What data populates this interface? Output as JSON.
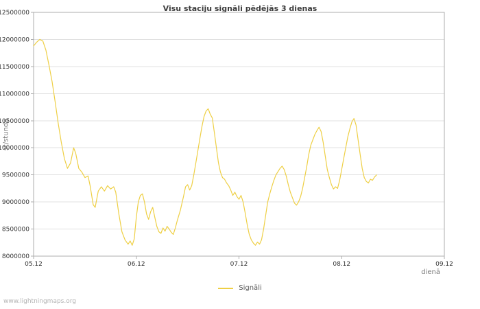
{
  "page": {
    "watermark": "www.lightningmaps.org"
  },
  "chart_data": {
    "type": "line",
    "title": "Visu staciju signāli pēdējās 3 dienas",
    "xlabel": "dienā",
    "ylabel": "st/stundā",
    "legend_position": "bottom-center",
    "grid": "horizontal",
    "x_range": [
      0,
      4
    ],
    "y_range": [
      8000000,
      12500000
    ],
    "colors": {
      "line": "#eecf44",
      "grid": "#e0e0e0",
      "frame": "#adadad"
    },
    "x_ticks": [
      {
        "value": 0,
        "label": "05.12"
      },
      {
        "value": 1,
        "label": "06.12"
      },
      {
        "value": 2,
        "label": "07.12"
      },
      {
        "value": 3,
        "label": "08.12"
      },
      {
        "value": 4,
        "label": "09.12"
      }
    ],
    "y_ticks": [
      {
        "value": 8000000,
        "label": "8000000"
      },
      {
        "value": 8500000,
        "label": "8500000"
      },
      {
        "value": 9000000,
        "label": "9000000"
      },
      {
        "value": 9500000,
        "label": "9500000"
      },
      {
        "value": 10000000,
        "label": "10000000"
      },
      {
        "value": 10500000,
        "label": "10500000"
      },
      {
        "value": 11000000,
        "label": "11000000"
      },
      {
        "value": 11500000,
        "label": "11500000"
      },
      {
        "value": 12000000,
        "label": "12000000"
      },
      {
        "value": 12500000,
        "label": "12500000"
      }
    ],
    "series": [
      {
        "name": "Signāli",
        "color": "#eecf44",
        "points": [
          [
            0,
            11880000
          ],
          [
            0.03,
            11950000
          ],
          [
            0.06,
            12000000
          ],
          [
            0.09,
            11970000
          ],
          [
            0.12,
            11800000
          ],
          [
            0.15,
            11520000
          ],
          [
            0.18,
            11220000
          ],
          [
            0.21,
            10850000
          ],
          [
            0.24,
            10450000
          ],
          [
            0.27,
            10100000
          ],
          [
            0.3,
            9800000
          ],
          [
            0.33,
            9620000
          ],
          [
            0.36,
            9720000
          ],
          [
            0.39,
            10000000
          ],
          [
            0.41,
            9900000
          ],
          [
            0.44,
            9620000
          ],
          [
            0.47,
            9550000
          ],
          [
            0.5,
            9450000
          ],
          [
            0.53,
            9480000
          ],
          [
            0.55,
            9300000
          ],
          [
            0.58,
            8950000
          ],
          [
            0.6,
            8900000
          ],
          [
            0.63,
            9200000
          ],
          [
            0.66,
            9280000
          ],
          [
            0.69,
            9200000
          ],
          [
            0.72,
            9300000
          ],
          [
            0.75,
            9240000
          ],
          [
            0.78,
            9280000
          ],
          [
            0.8,
            9180000
          ],
          [
            0.83,
            8780000
          ],
          [
            0.86,
            8450000
          ],
          [
            0.89,
            8300000
          ],
          [
            0.92,
            8220000
          ],
          [
            0.94,
            8280000
          ],
          [
            0.96,
            8200000
          ],
          [
            0.98,
            8320000
          ],
          [
            1,
            8720000
          ],
          [
            1.02,
            9000000
          ],
          [
            1.04,
            9120000
          ],
          [
            1.06,
            9150000
          ],
          [
            1.08,
            9000000
          ],
          [
            1.1,
            8780000
          ],
          [
            1.12,
            8680000
          ],
          [
            1.14,
            8820000
          ],
          [
            1.16,
            8900000
          ],
          [
            1.18,
            8720000
          ],
          [
            1.2,
            8550000
          ],
          [
            1.22,
            8450000
          ],
          [
            1.24,
            8420000
          ],
          [
            1.26,
            8520000
          ],
          [
            1.28,
            8460000
          ],
          [
            1.3,
            8550000
          ],
          [
            1.32,
            8500000
          ],
          [
            1.34,
            8440000
          ],
          [
            1.36,
            8400000
          ],
          [
            1.38,
            8520000
          ],
          [
            1.4,
            8660000
          ],
          [
            1.43,
            8850000
          ],
          [
            1.46,
            9100000
          ],
          [
            1.48,
            9280000
          ],
          [
            1.5,
            9320000
          ],
          [
            1.52,
            9220000
          ],
          [
            1.54,
            9300000
          ],
          [
            1.56,
            9500000
          ],
          [
            1.58,
            9720000
          ],
          [
            1.6,
            9950000
          ],
          [
            1.62,
            10180000
          ],
          [
            1.64,
            10400000
          ],
          [
            1.66,
            10580000
          ],
          [
            1.68,
            10680000
          ],
          [
            1.7,
            10720000
          ],
          [
            1.72,
            10620000
          ],
          [
            1.74,
            10550000
          ],
          [
            1.76,
            10280000
          ],
          [
            1.78,
            10000000
          ],
          [
            1.8,
            9720000
          ],
          [
            1.82,
            9550000
          ],
          [
            1.84,
            9450000
          ],
          [
            1.86,
            9420000
          ],
          [
            1.88,
            9350000
          ],
          [
            1.9,
            9300000
          ],
          [
            1.92,
            9220000
          ],
          [
            1.94,
            9120000
          ],
          [
            1.96,
            9180000
          ],
          [
            1.98,
            9100000
          ],
          [
            2,
            9050000
          ],
          [
            2.02,
            9120000
          ],
          [
            2.04,
            9000000
          ],
          [
            2.06,
            8800000
          ],
          [
            2.08,
            8580000
          ],
          [
            2.1,
            8400000
          ],
          [
            2.12,
            8300000
          ],
          [
            2.14,
            8240000
          ],
          [
            2.16,
            8200000
          ],
          [
            2.18,
            8260000
          ],
          [
            2.2,
            8220000
          ],
          [
            2.22,
            8300000
          ],
          [
            2.24,
            8500000
          ],
          [
            2.26,
            8750000
          ],
          [
            2.28,
            9000000
          ],
          [
            2.3,
            9150000
          ],
          [
            2.32,
            9280000
          ],
          [
            2.34,
            9400000
          ],
          [
            2.36,
            9500000
          ],
          [
            2.38,
            9560000
          ],
          [
            2.4,
            9620000
          ],
          [
            2.42,
            9660000
          ],
          [
            2.44,
            9600000
          ],
          [
            2.46,
            9480000
          ],
          [
            2.48,
            9320000
          ],
          [
            2.5,
            9180000
          ],
          [
            2.52,
            9080000
          ],
          [
            2.54,
            8980000
          ],
          [
            2.56,
            8940000
          ],
          [
            2.58,
            9000000
          ],
          [
            2.6,
            9100000
          ],
          [
            2.62,
            9250000
          ],
          [
            2.64,
            9450000
          ],
          [
            2.66,
            9650000
          ],
          [
            2.68,
            9880000
          ],
          [
            2.7,
            10050000
          ],
          [
            2.72,
            10150000
          ],
          [
            2.74,
            10250000
          ],
          [
            2.76,
            10320000
          ],
          [
            2.78,
            10380000
          ],
          [
            2.8,
            10300000
          ],
          [
            2.82,
            10100000
          ],
          [
            2.84,
            9850000
          ],
          [
            2.86,
            9600000
          ],
          [
            2.88,
            9450000
          ],
          [
            2.9,
            9320000
          ],
          [
            2.92,
            9240000
          ],
          [
            2.94,
            9280000
          ],
          [
            2.96,
            9250000
          ],
          [
            2.98,
            9400000
          ],
          [
            3,
            9600000
          ],
          [
            3.02,
            9800000
          ],
          [
            3.04,
            10000000
          ],
          [
            3.06,
            10200000
          ],
          [
            3.08,
            10350000
          ],
          [
            3.1,
            10480000
          ],
          [
            3.12,
            10540000
          ],
          [
            3.14,
            10420000
          ],
          [
            3.16,
            10150000
          ],
          [
            3.18,
            9880000
          ],
          [
            3.2,
            9620000
          ],
          [
            3.22,
            9450000
          ],
          [
            3.24,
            9380000
          ],
          [
            3.26,
            9350000
          ],
          [
            3.28,
            9420000
          ],
          [
            3.3,
            9400000
          ],
          [
            3.32,
            9460000
          ],
          [
            3.34,
            9500000
          ]
        ]
      }
    ]
  }
}
